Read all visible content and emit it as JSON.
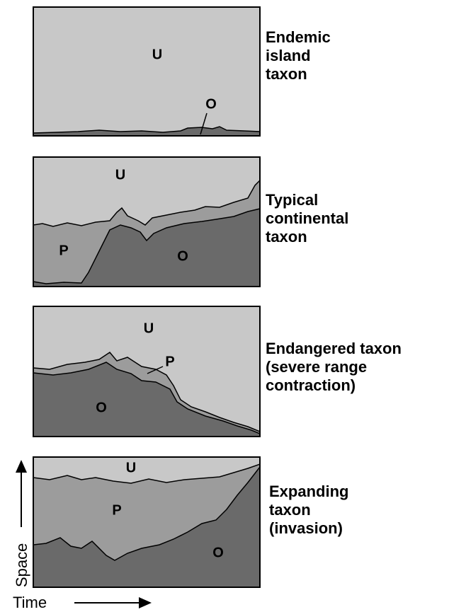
{
  "panels": [
    {
      "caption": [
        "Endemic",
        "island",
        "taxon"
      ],
      "labels": {
        "U": "U",
        "O": "O"
      }
    },
    {
      "caption": [
        "Typical",
        "continental",
        "taxon"
      ],
      "labels": {
        "U": "U",
        "P": "P",
        "O": "O"
      }
    },
    {
      "caption": [
        "Endangered taxon",
        "(severe range",
        "contraction)"
      ],
      "labels": {
        "U": "U",
        "P": "P",
        "O": "O"
      }
    },
    {
      "caption": [
        "Expanding",
        "taxon",
        "(invasion)"
      ],
      "labels": {
        "U": "U",
        "P": "P",
        "O": "O"
      }
    }
  ],
  "axes": {
    "y": "Space",
    "x": "Time"
  }
}
